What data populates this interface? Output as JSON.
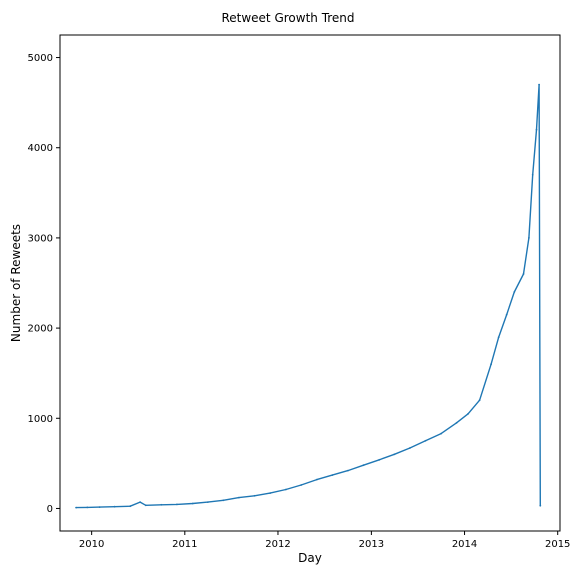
{
  "chart_data": {
    "type": "line",
    "title": "Retweet Growth Trend",
    "xlabel": "Day",
    "ylabel": "Number of Reweets",
    "xlim": [
      "2009-08-30",
      "2015-01-10"
    ],
    "ylim": [
      -250,
      5250
    ],
    "x_ticks": [
      "2010",
      "2011",
      "2012",
      "2013",
      "2014",
      "2015"
    ],
    "y_ticks": [
      0,
      1000,
      2000,
      3000,
      4000,
      5000
    ],
    "grid": false,
    "legend": "none",
    "series": [
      {
        "color": "#1f77b4",
        "points": [
          [
            "2009-11-01",
            10
          ],
          [
            "2009-12-15",
            12
          ],
          [
            "2010-02-01",
            15
          ],
          [
            "2010-04-01",
            20
          ],
          [
            "2010-06-01",
            25
          ],
          [
            "2010-07-10",
            70
          ],
          [
            "2010-08-01",
            35
          ],
          [
            "2010-10-01",
            40
          ],
          [
            "2010-12-01",
            45
          ],
          [
            "2011-02-01",
            55
          ],
          [
            "2011-04-01",
            70
          ],
          [
            "2011-06-01",
            90
          ],
          [
            "2011-08-01",
            120
          ],
          [
            "2011-10-01",
            140
          ],
          [
            "2011-12-01",
            170
          ],
          [
            "2012-02-01",
            210
          ],
          [
            "2012-04-01",
            260
          ],
          [
            "2012-06-01",
            320
          ],
          [
            "2012-08-01",
            370
          ],
          [
            "2012-10-01",
            420
          ],
          [
            "2012-12-01",
            480
          ],
          [
            "2013-02-01",
            540
          ],
          [
            "2013-04-01",
            600
          ],
          [
            "2013-06-01",
            670
          ],
          [
            "2013-08-01",
            750
          ],
          [
            "2013-10-01",
            830
          ],
          [
            "2013-12-01",
            950
          ],
          [
            "2014-01-15",
            1050
          ],
          [
            "2014-03-01",
            1200
          ],
          [
            "2014-04-15",
            1600
          ],
          [
            "2014-05-15",
            1900
          ],
          [
            "2014-06-15",
            2150
          ],
          [
            "2014-07-15",
            2400
          ],
          [
            "2014-08-20",
            2600
          ],
          [
            "2014-09-10",
            3000
          ],
          [
            "2014-09-25",
            3700
          ],
          [
            "2014-10-10",
            4200
          ],
          [
            "2014-10-20",
            4700
          ],
          [
            "2014-10-25",
            30
          ]
        ]
      }
    ]
  }
}
